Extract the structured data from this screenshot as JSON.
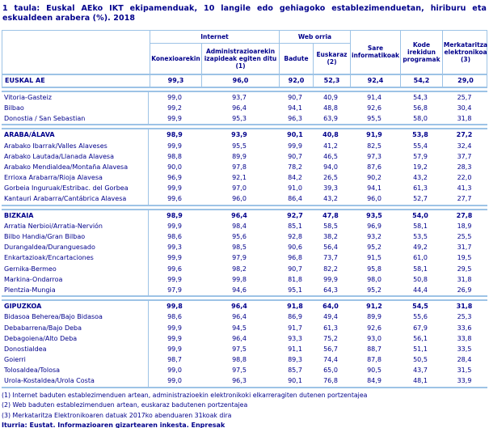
{
  "title": "1 taula: Euskal AEko IKT ekipamenduak, 10 langile edo gehiagoko establezimenduetan, hiriburu eta eskualdeen arabera (%). 2018",
  "colors": {
    "text": "#00008B",
    "border": "#9DC3E6",
    "background": "#FFFFFF"
  },
  "table": {
    "groups": [
      {
        "label": "Internet"
      },
      {
        "label": "Web orria"
      }
    ],
    "columns": [
      "Konexioarekin",
      "Administrazioarekin izapideak egiten ditu (1)",
      "Badute",
      "Euskaraz (2)",
      "Sare informatikoak",
      "Kode irekidun programak",
      "Merkataritza elektronikoa (3)"
    ],
    "sections": [
      {
        "name": "euskal-ae",
        "grid": true,
        "rows": [
          {
            "label": "EUSKAL AE",
            "bold": true,
            "values": [
              "99,3",
              "96,0",
              "92,0",
              "52,3",
              "92,4",
              "54,2",
              "29,0"
            ]
          }
        ]
      },
      {
        "name": "hiriburuak",
        "rows": [
          {
            "label": "Vitoria-Gasteiz",
            "values": [
              "99,0",
              "93,7",
              "90,7",
              "40,9",
              "91,4",
              "54,3",
              "25,7"
            ]
          },
          {
            "label": "Bilbao",
            "values": [
              "99,2",
              "96,4",
              "94,1",
              "48,8",
              "92,6",
              "56,8",
              "30,4"
            ]
          },
          {
            "label": "Donostia / San Sebastian",
            "values": [
              "99,9",
              "95,3",
              "96,3",
              "63,9",
              "95,5",
              "58,0",
              "31,8"
            ]
          }
        ]
      },
      {
        "name": "araba",
        "rows": [
          {
            "label": "ARABA/ÁLAVA",
            "bold": true,
            "values": [
              "98,9",
              "93,9",
              "90,1",
              "40,8",
              "91,9",
              "53,8",
              "27,2"
            ]
          },
          {
            "label": "Arabako Ibarrak/Valles Alaveses",
            "values": [
              "99,9",
              "95,5",
              "99,9",
              "41,2",
              "82,5",
              "55,4",
              "32,4"
            ]
          },
          {
            "label": "Arabako Lautada/Llanada Alavesa",
            "values": [
              "98,8",
              "89,9",
              "90,7",
              "46,5",
              "97,3",
              "57,9",
              "37,7"
            ]
          },
          {
            "label": "Arabako Mendialdea/Montaña Alavesa",
            "values": [
              "90,0",
              "97,8",
              "78,2",
              "94,0",
              "87,6",
              "19,2",
              "28,3"
            ]
          },
          {
            "label": "Errioxa Arabarra/Rioja Alavesa",
            "values": [
              "96,9",
              "92,1",
              "84,2",
              "26,5",
              "90,2",
              "43,2",
              "22,0"
            ]
          },
          {
            "label": "Gorbeia Inguruak/Estribac. del Gorbea",
            "values": [
              "99,9",
              "97,0",
              "91,0",
              "39,3",
              "94,1",
              "61,3",
              "41,3"
            ]
          },
          {
            "label": "Kantauri Arabarra/Cantábrica Alavesa",
            "values": [
              "99,6",
              "96,0",
              "86,4",
              "43,2",
              "96,0",
              "52,7",
              "27,7"
            ]
          }
        ]
      },
      {
        "name": "bizkaia",
        "rows": [
          {
            "label": "BIZKAIA",
            "bold": true,
            "values": [
              "98,9",
              "96,4",
              "92,7",
              "47,8",
              "93,5",
              "54,0",
              "27,8"
            ]
          },
          {
            "label": "Arratia Nerbioi/Arratia-Nervión",
            "values": [
              "99,9",
              "98,4",
              "85,1",
              "58,5",
              "96,9",
              "58,1",
              "18,9"
            ]
          },
          {
            "label": "Bilbo Handia/Gran Bilbao",
            "values": [
              "98,6",
              "95,6",
              "92,8",
              "38,2",
              "93,2",
              "53,5",
              "25,5"
            ]
          },
          {
            "label": "Durangaldea/Duranguesado",
            "values": [
              "99,3",
              "98,5",
              "90,6",
              "56,4",
              "95,2",
              "49,2",
              "31,7"
            ]
          },
          {
            "label": "Enkartazioak/Encartaciones",
            "values": [
              "99,9",
              "97,9",
              "96,8",
              "73,7",
              "91,5",
              "61,0",
              "19,5"
            ]
          },
          {
            "label": "Gernika-Bermeo",
            "values": [
              "99,6",
              "98,2",
              "90,7",
              "82,2",
              "95,8",
              "58,1",
              "29,5"
            ]
          },
          {
            "label": "Markina-Ondarroa",
            "values": [
              "99,9",
              "99,8",
              "81,8",
              "99,9",
              "98,0",
              "50,8",
              "31,8"
            ]
          },
          {
            "label": "Plentzia-Mungia",
            "values": [
              "97,9",
              "94,6",
              "95,1",
              "64,3",
              "95,2",
              "44,4",
              "26,9"
            ]
          }
        ]
      },
      {
        "name": "gipuzkoa",
        "rows": [
          {
            "label": "GIPUZKOA",
            "bold": true,
            "values": [
              "99,8",
              "96,4",
              "91,8",
              "64,0",
              "91,2",
              "54,5",
              "31,8"
            ]
          },
          {
            "label": "Bidasoa Beherea/Bajo Bidasoa",
            "values": [
              "98,6",
              "96,4",
              "86,9",
              "49,4",
              "89,9",
              "55,6",
              "25,3"
            ]
          },
          {
            "label": "Debabarrena/Bajo Deba",
            "values": [
              "99,9",
              "94,5",
              "91,7",
              "61,3",
              "92,6",
              "67,9",
              "33,6"
            ]
          },
          {
            "label": "Debagoiena/Alto Deba",
            "values": [
              "99,9",
              "96,4",
              "93,3",
              "75,2",
              "93,0",
              "56,1",
              "33,8"
            ]
          },
          {
            "label": "Donostialdea",
            "values": [
              "99,9",
              "97,5",
              "91,1",
              "56,7",
              "88,7",
              "51,1",
              "33,5"
            ]
          },
          {
            "label": "Goierri",
            "values": [
              "98,7",
              "98,8",
              "89,3",
              "74,4",
              "87,8",
              "50,5",
              "28,4"
            ]
          },
          {
            "label": "Tolosaldea/Tolosa",
            "values": [
              "99,0",
              "97,5",
              "85,7",
              "65,0",
              "90,5",
              "43,7",
              "31,5"
            ]
          },
          {
            "label": "Urola-Kostaldea/Urola Costa",
            "values": [
              "99,0",
              "96,3",
              "90,1",
              "76,8",
              "84,9",
              "48,1",
              "33,9"
            ]
          }
        ]
      }
    ]
  },
  "footnotes": [
    "(1) Internet baduten establezimenduen artean, administrazioekin elektronikoki elkarreragiten dutenen portzentajea",
    "(2) Web baduten establezimenduen artean, euskaraz badutenen portzentajea",
    "(3) Merkataritza Elektronikoaren datuak 2017ko  abenduaren 31koak dira"
  ],
  "source": "Iturria: Eustat. Informazioaren gizartearen inkesta. Enpresak"
}
